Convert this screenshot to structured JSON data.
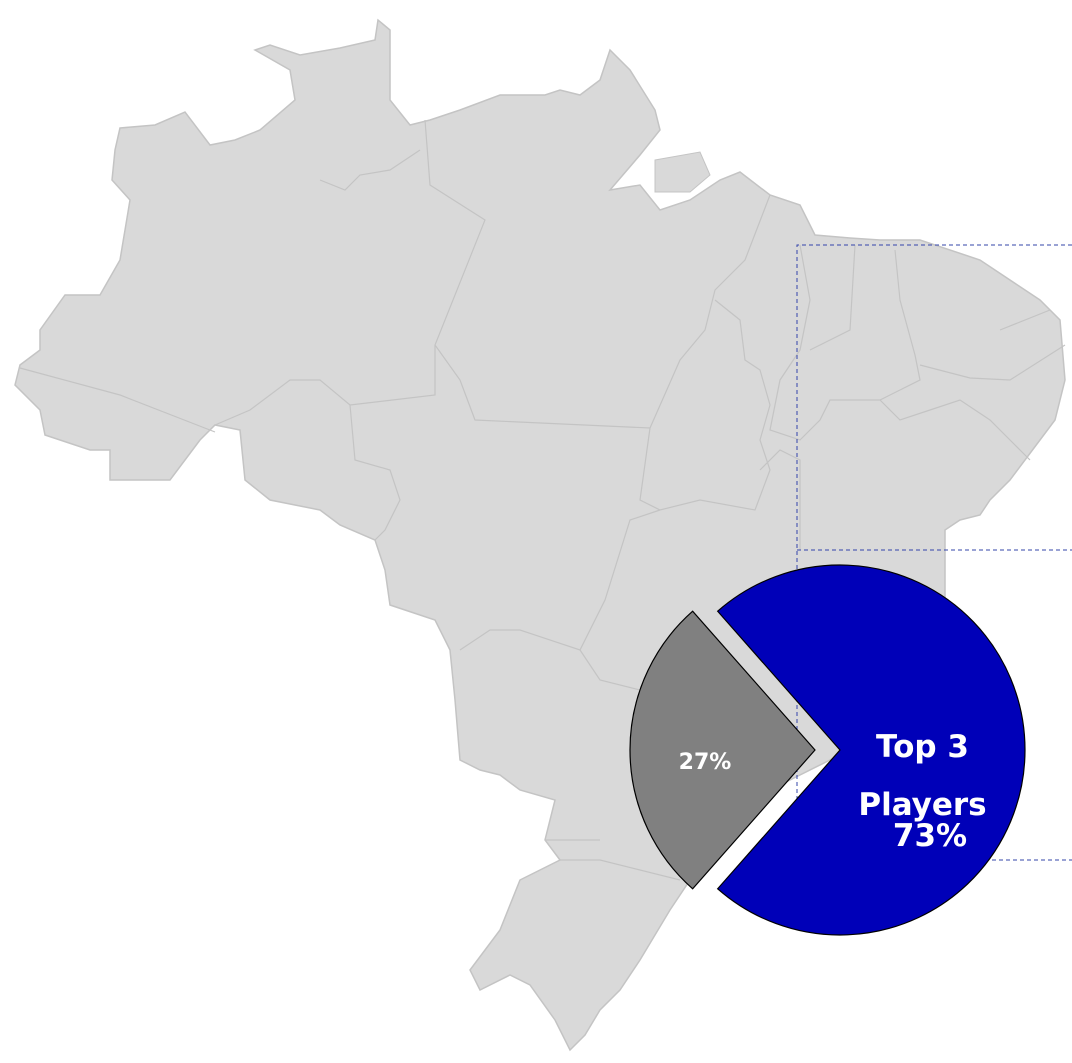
{
  "chart_data": {
    "type": "pie",
    "categories": [
      "Top 3 Players",
      null
    ],
    "values": [
      73,
      27
    ],
    "value_labels": [
      "73%",
      "27%"
    ],
    "colors": [
      "#0000b8",
      "#808080"
    ]
  }
}
